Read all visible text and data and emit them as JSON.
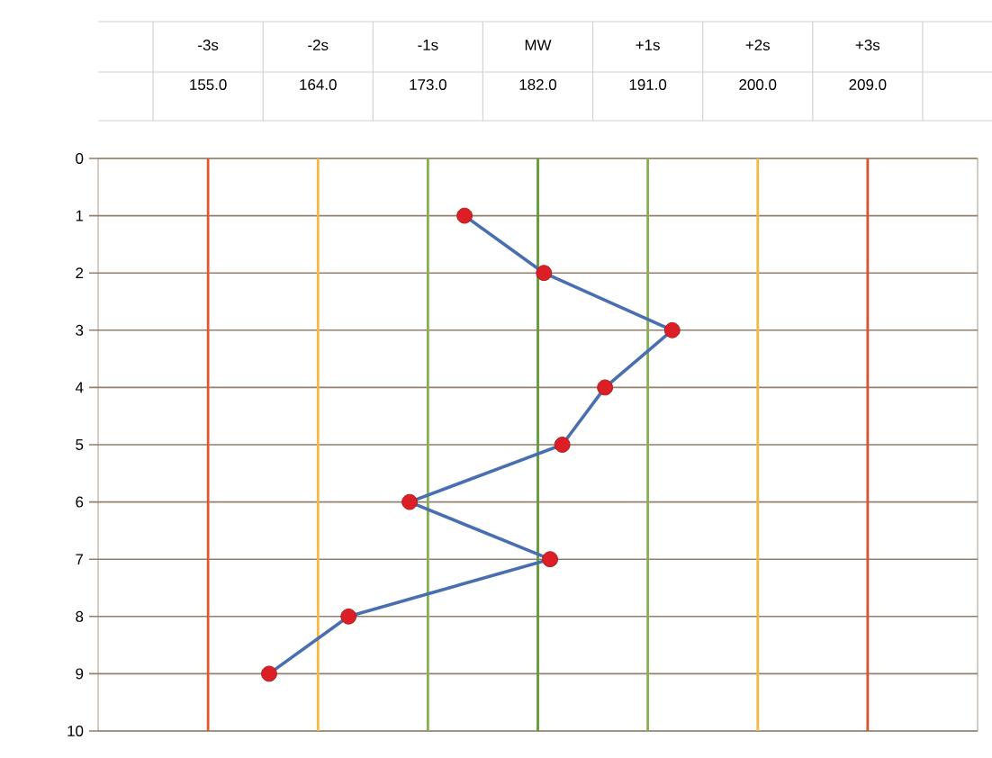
{
  "chart_data": {
    "type": "line",
    "x": [
      176,
      182.5,
      193,
      187.5,
      184,
      171.5,
      183,
      166.5,
      160
    ],
    "series": [
      {
        "color": "#4a6fb0",
        "values": [
          1,
          2,
          3,
          4,
          5,
          6,
          7,
          8,
          9
        ]
      }
    ],
    "xlim": [
      146,
      218
    ],
    "xticks": [
      {
        "value": 155,
        "label": "155.0"
      },
      {
        "value": 164,
        "label": "164.0"
      },
      {
        "value": 173,
        "label": "173.0"
      },
      {
        "value": 182,
        "label": "182.0"
      },
      {
        "value": 191,
        "label": "191.0"
      },
      {
        "value": 200,
        "label": "200.0"
      },
      {
        "value": 209,
        "label": "209.0"
      }
    ],
    "ylim": [
      10,
      0
    ],
    "yticks": [
      0,
      1,
      2,
      3,
      4,
      5,
      6,
      7,
      8,
      9,
      10
    ],
    "annotations": [
      "-3s",
      "-2s",
      "-1s",
      "MW",
      "+1s",
      "+2s",
      "+3s"
    ],
    "ref_lines": [
      {
        "axis": "x",
        "value": 155,
        "color": "#e0572b"
      },
      {
        "axis": "x",
        "value": 164,
        "color": "#f4b942"
      },
      {
        "axis": "x",
        "value": 173,
        "color": "#86b050"
      },
      {
        "axis": "x",
        "value": 182,
        "color": "#5f9a35"
      },
      {
        "axis": "x",
        "value": 191,
        "color": "#86b050"
      },
      {
        "axis": "x",
        "value": 200,
        "color": "#f4b942"
      },
      {
        "axis": "x",
        "value": 209,
        "color": "#d9532e"
      }
    ],
    "grid": "y",
    "marker": "circle",
    "line_style": "solid"
  }
}
